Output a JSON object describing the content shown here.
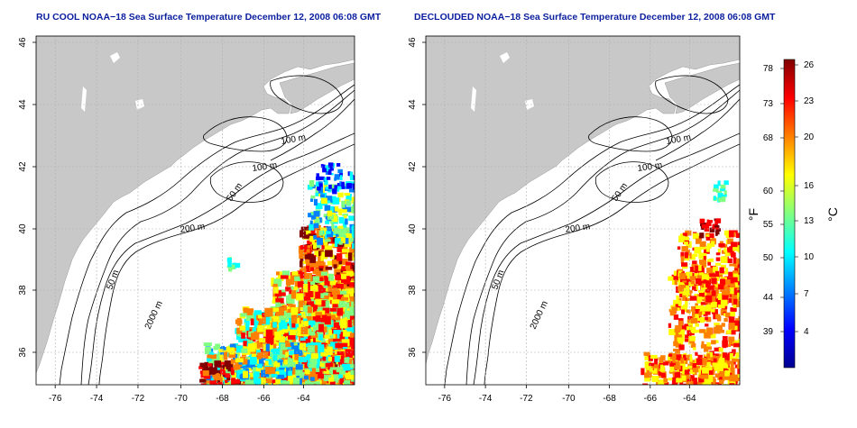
{
  "panels": [
    {
      "id": "left",
      "title": "RU COOL NOAA−18 Sea Surface Temperature December 12, 2008 06:08 GMT"
    },
    {
      "id": "right",
      "title": "DECLOUDED NOAA−18 Sea Surface Temperature December 12, 2008 06:08 GMT"
    }
  ],
  "map": {
    "lon_ticks": [
      "-76",
      "-74",
      "-72",
      "-70",
      "-68",
      "-66",
      "-64"
    ],
    "lat_ticks": [
      "46",
      "44",
      "42",
      "40",
      "38",
      "36"
    ],
    "contour_labels": [
      "100 m",
      "100 m",
      "50 m",
      "200 m",
      "50 m",
      "2000 m"
    ],
    "land_color": "#c8c8c8",
    "grid_style": "dotted"
  },
  "colorbar": {
    "fahrenheit_label": "°F",
    "celsius_label": "°C",
    "fahrenheit_ticks": [
      "78",
      "73",
      "68",
      "60",
      "55",
      "50",
      "44",
      "39"
    ],
    "celsius_ticks": [
      "26",
      "23",
      "20",
      "16",
      "13",
      "10",
      "7",
      "4"
    ],
    "colors": [
      "#00008f",
      "#0000ff",
      "#0080ff",
      "#00ffff",
      "#80ff80",
      "#ffff00",
      "#ff8000",
      "#ff0000",
      "#800000"
    ]
  }
}
